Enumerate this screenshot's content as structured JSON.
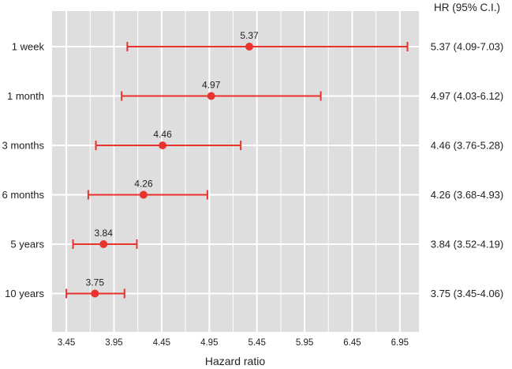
{
  "chart_data": {
    "type": "forest",
    "title": "",
    "xlabel": "Hazard ratio",
    "ylabel": "",
    "right_header": "HR (95% C.I.)",
    "xlim": [
      3.3,
      7.15
    ],
    "xticks": [
      3.45,
      3.95,
      4.45,
      4.95,
      5.45,
      5.95,
      6.45,
      6.95
    ],
    "xtick_labels": [
      "3.45",
      "3.95",
      "4.45",
      "4.95",
      "5.45",
      "5.95",
      "6.45",
      "6.95"
    ],
    "grid": true,
    "colors": {
      "marker": "#e8332f",
      "panel": "#dedede",
      "grid": "#ffffff"
    },
    "rows": [
      {
        "label": "1 week",
        "hr": 5.37,
        "lo": 4.09,
        "hi": 7.03,
        "value_label": "5.37",
        "ci_text": "5.37 (4.09-7.03)"
      },
      {
        "label": "1 month",
        "hr": 4.97,
        "lo": 4.03,
        "hi": 6.12,
        "value_label": "4.97",
        "ci_text": "4.97 (4.03-6.12)"
      },
      {
        "label": "3 months",
        "hr": 4.46,
        "lo": 3.76,
        "hi": 5.28,
        "value_label": "4.46",
        "ci_text": "4.46 (3.76-5.28)"
      },
      {
        "label": "6 months",
        "hr": 4.26,
        "lo": 3.68,
        "hi": 4.93,
        "value_label": "4.26",
        "ci_text": "4.26 (3.68-4.93)"
      },
      {
        "label": "5 years",
        "hr": 3.84,
        "lo": 3.52,
        "hi": 4.19,
        "value_label": "3.84",
        "ci_text": "3.84 (3.52-4.19)"
      },
      {
        "label": "10 years",
        "hr": 3.75,
        "lo": 3.45,
        "hi": 4.06,
        "value_label": "3.75",
        "ci_text": "3.75 (3.45-4.06)"
      }
    ]
  }
}
